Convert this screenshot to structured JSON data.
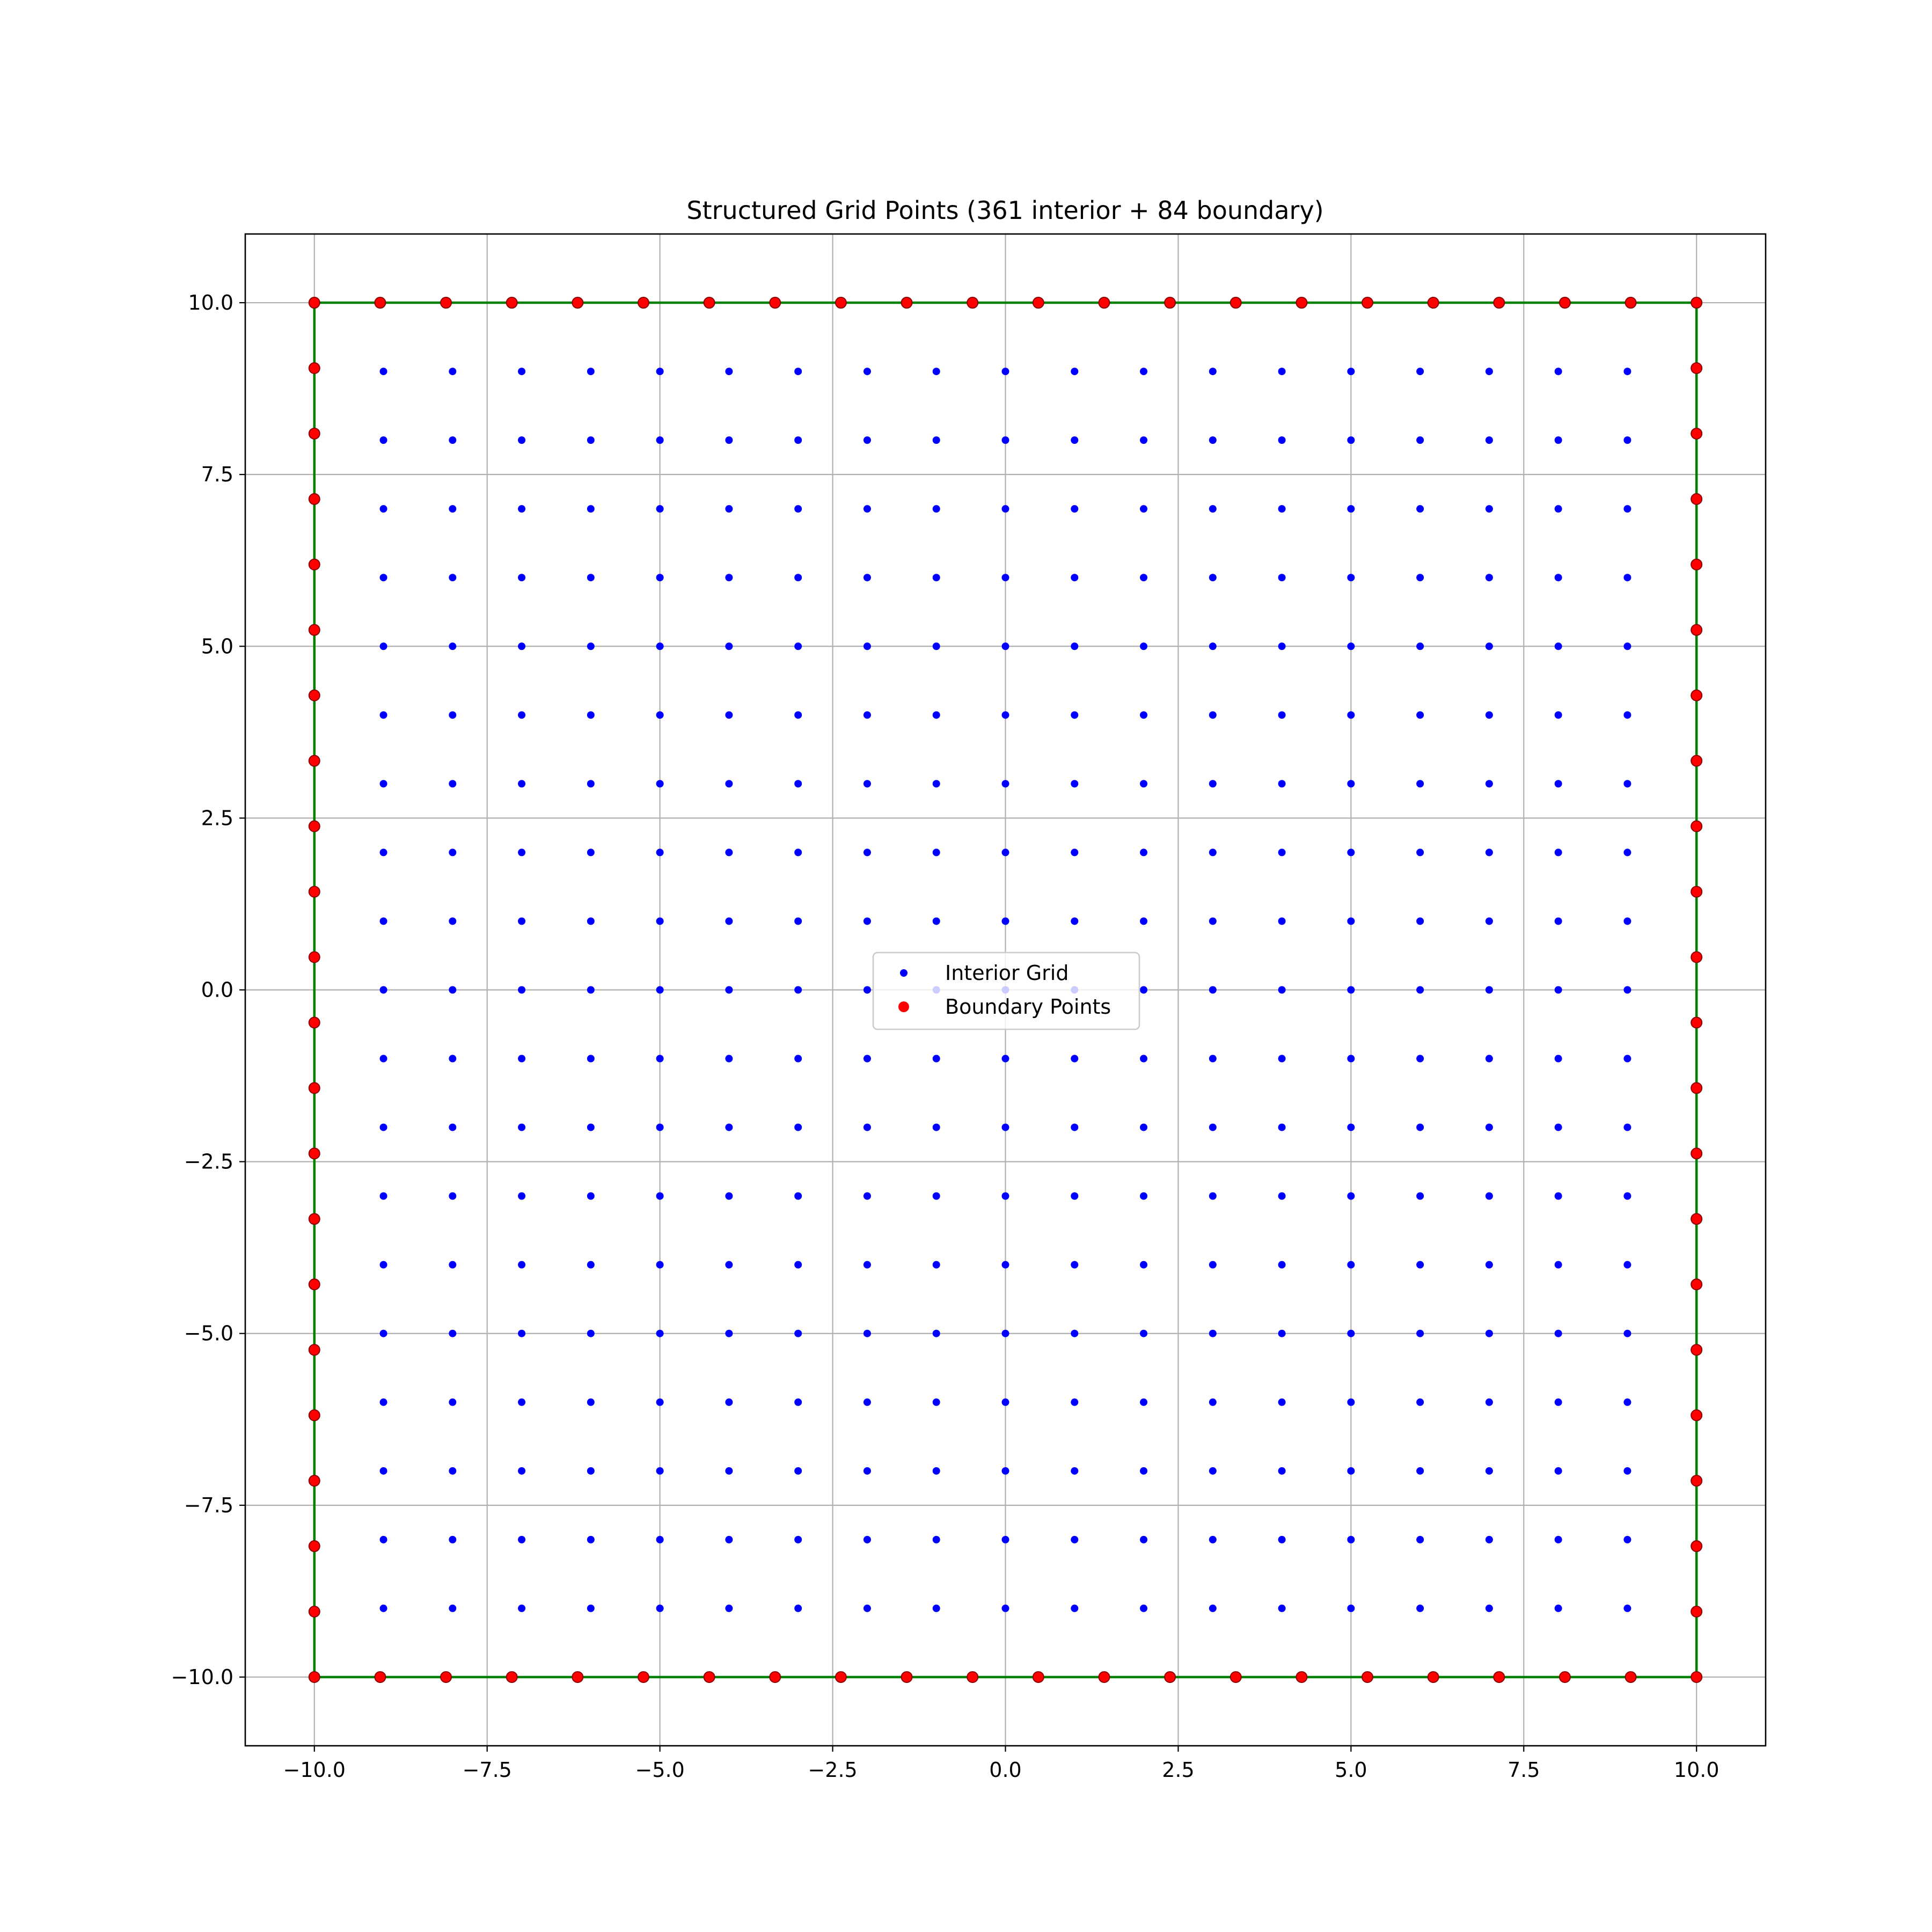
{
  "chart_data": {
    "type": "scatter",
    "title": "Structured Grid Points (361 interior + 84 boundary)",
    "xlabel": "",
    "ylabel": "",
    "xlim": [
      -11,
      11
    ],
    "ylim": [
      -11,
      11
    ],
    "xticks": [
      -10.0,
      -7.5,
      -5.0,
      -2.5,
      0.0,
      2.5,
      5.0,
      7.5,
      10.0
    ],
    "yticks": [
      -10.0,
      -7.5,
      -5.0,
      -2.5,
      0.0,
      2.5,
      5.0,
      7.5,
      10.0
    ],
    "xtick_labels": [
      "−10.0",
      "−7.5",
      "−5.0",
      "−2.5",
      "0.0",
      "2.5",
      "5.0",
      "7.5",
      "10.0"
    ],
    "ytick_labels": [
      "−10.0",
      "−7.5",
      "−5.0",
      "−2.5",
      "0.0",
      "2.5",
      "5.0",
      "7.5",
      "10.0"
    ],
    "grid": true,
    "legend_position": "center",
    "series": [
      {
        "name": "Interior Grid",
        "color": "#0000ff",
        "marker": "dot",
        "grid_x": [
          -9,
          -8,
          -7,
          -6,
          -5,
          -4,
          -3,
          -2,
          -1,
          0,
          1,
          2,
          3,
          4,
          5,
          6,
          7,
          8,
          9
        ],
        "grid_y": [
          -9,
          -8,
          -7,
          -6,
          -5,
          -4,
          -3,
          -2,
          -1,
          0,
          1,
          2,
          3,
          4,
          5,
          6,
          7,
          8,
          9
        ]
      },
      {
        "name": "Boundary Points",
        "color": "#ff0000",
        "edge_color": "#8b0000",
        "marker": "dot",
        "edge_positions": [
          -10.0,
          -9.0476,
          -8.0952,
          -7.1429,
          -6.1905,
          -5.2381,
          -4.2857,
          -3.3333,
          -2.381,
          -1.4286,
          -0.4762,
          0.4762,
          1.4286,
          2.381,
          3.3333,
          4.2857,
          5.2381,
          6.1905,
          7.1429,
          8.0952,
          9.0476,
          10.0
        ]
      }
    ],
    "domain_outline": {
      "color": "#008000",
      "x": [
        -10,
        10,
        10,
        -10,
        -10
      ],
      "y": [
        -10,
        -10,
        10,
        10,
        -10
      ]
    }
  }
}
